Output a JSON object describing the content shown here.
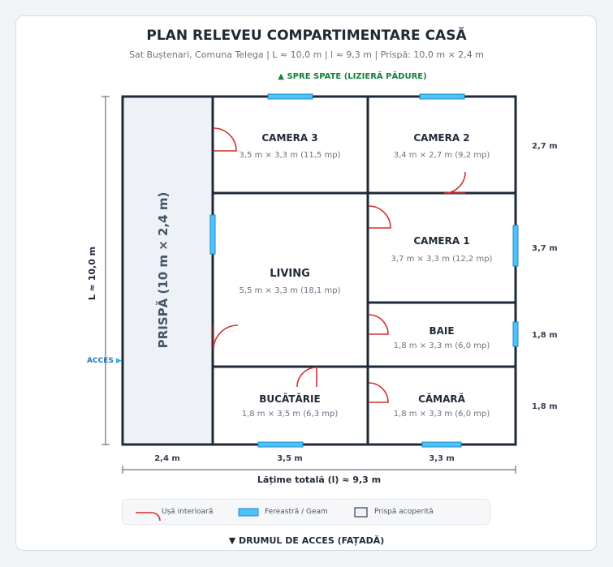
{
  "header": {
    "title": "PLAN RELEVEU COMPARTIMENTARE CASĂ",
    "subtitle": "Sat Buștenari, Comuna Telega | L ≈ 10,0 m | l ≈ 9,3 m | Prispă: 10,0 m × 2,4 m"
  },
  "orientation": {
    "north": "▲ SPRE SPATE (LIZIERĂ PĂDURE)",
    "south": "▼ DRUMUL DE ACCES (FAȚADĂ)",
    "access": "ACCES",
    "access_arrow": "▶"
  },
  "rooms": {
    "prispa": {
      "name": "PRISPĂ (10 m × 2,4 m)"
    },
    "camera3": {
      "name": "CAMERA 3",
      "dims": "3,5 m × 3,3 m (11,5 mp)"
    },
    "camera2": {
      "name": "CAMERA 2",
      "dims": "3,4 m × 2,7 m (9,2 mp)"
    },
    "camera1": {
      "name": "CAMERA 1",
      "dims": "3,7 m × 3,3 m (12,2 mp)"
    },
    "living": {
      "name": "LIVING",
      "dims": "5,5 m × 3,3 m (18,1 mp)"
    },
    "baie": {
      "name": "BAIE",
      "dims": "1,8 m × 3,3 m (6,0 mp)"
    },
    "bucatarie": {
      "name": "BUCĂTĂRIE",
      "dims": "1,8 m × 3,5 m (6,3 mp)"
    },
    "camara": {
      "name": "CĂMARĂ",
      "dims": "1,8 m × 3,3 m (6,0 mp)"
    }
  },
  "dimensions": {
    "left_total": "L ≈ 10,0 m",
    "bottom": [
      "2,4 m",
      "3,5 m",
      "3,3 m"
    ],
    "total_width": "Lățime totală (l) ≈ 9,3 m",
    "right": [
      "2,7 m",
      "3,7 m",
      "1,8 m",
      "1,8 m"
    ]
  },
  "legend": {
    "door": "Ușă interioară",
    "window": "Fereastră / Geam",
    "porch": "Prispă acoperită"
  },
  "colors": {
    "wall": "#1f2937",
    "door": "#d32f2f",
    "window": "#4fc3f7",
    "window_border": "#1e88c8",
    "porch": "#eef1f5",
    "north_text": "#15803d",
    "access_text": "#1d7bbf"
  }
}
